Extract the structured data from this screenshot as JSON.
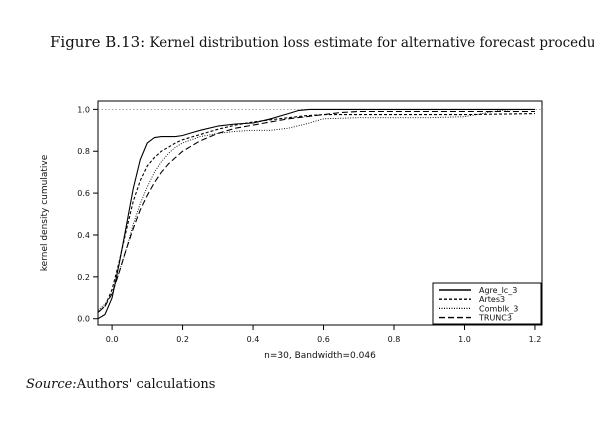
{
  "figure": {
    "number_label": "Figure B.13:",
    "title": "Kernel distribution loss estimate for alternative forecast procedures"
  },
  "source": {
    "label": "Source:",
    "text": "Authors' calculations"
  },
  "chart_data": {
    "type": "line",
    "title": "",
    "xlabel": "n=30, Bandwidth=0.046",
    "ylabel": "kernel density cumulative",
    "xlim": [
      -0.04,
      1.22
    ],
    "ylim": [
      -0.03,
      1.04
    ],
    "x_ticks": [
      0.0,
      0.2,
      0.4,
      0.6,
      0.8,
      1.0,
      1.2
    ],
    "x_tick_labels": [
      "0.0",
      "0.2",
      "0.4",
      "0.6",
      "0.8",
      "1.0",
      "1.2"
    ],
    "y_ticks": [
      0.0,
      0.2,
      0.4,
      0.6,
      0.8,
      1.0
    ],
    "y_tick_labels": [
      "0.0",
      "0.2",
      "0.4",
      "0.6",
      "0.8",
      "1.0"
    ],
    "reference_line": 1.0,
    "legend_position": "bottom-right",
    "series": [
      {
        "name": "Agre_lc_3",
        "style": "solid",
        "x": [
          -0.04,
          -0.02,
          0.0,
          0.02,
          0.04,
          0.06,
          0.08,
          0.1,
          0.12,
          0.14,
          0.16,
          0.18,
          0.2,
          0.22,
          0.25,
          0.3,
          0.35,
          0.4,
          0.45,
          0.5,
          0.53,
          0.56,
          0.6,
          0.8,
          1.0,
          1.2
        ],
        "y": [
          0.0,
          0.02,
          0.1,
          0.26,
          0.44,
          0.62,
          0.76,
          0.84,
          0.865,
          0.87,
          0.87,
          0.87,
          0.875,
          0.885,
          0.9,
          0.92,
          0.93,
          0.935,
          0.955,
          0.98,
          0.995,
          1.0,
          1.0,
          1.0,
          1.0,
          1.0
        ]
      },
      {
        "name": "Artes3",
        "style": "dashed-short",
        "x": [
          -0.04,
          -0.02,
          0.0,
          0.02,
          0.04,
          0.06,
          0.08,
          0.1,
          0.12,
          0.14,
          0.16,
          0.18,
          0.2,
          0.25,
          0.3,
          0.35,
          0.4,
          0.45,
          0.5,
          0.55,
          0.6,
          0.8,
          1.0,
          1.2
        ],
        "y": [
          0.03,
          0.06,
          0.14,
          0.27,
          0.42,
          0.56,
          0.66,
          0.73,
          0.77,
          0.8,
          0.82,
          0.84,
          0.855,
          0.88,
          0.905,
          0.925,
          0.94,
          0.95,
          0.96,
          0.97,
          0.975,
          0.975,
          0.975,
          0.98
        ]
      },
      {
        "name": "Comblk_3",
        "style": "dotted",
        "x": [
          -0.04,
          -0.02,
          0.0,
          0.02,
          0.04,
          0.06,
          0.08,
          0.1,
          0.12,
          0.14,
          0.16,
          0.18,
          0.2,
          0.25,
          0.3,
          0.35,
          0.4,
          0.45,
          0.5,
          0.55,
          0.6,
          0.7,
          0.8,
          0.9,
          1.0,
          1.05,
          1.1,
          1.15,
          1.2
        ],
        "y": [
          0.04,
          0.07,
          0.12,
          0.22,
          0.33,
          0.45,
          0.55,
          0.63,
          0.7,
          0.75,
          0.79,
          0.82,
          0.84,
          0.87,
          0.885,
          0.895,
          0.9,
          0.9,
          0.91,
          0.93,
          0.955,
          0.96,
          0.96,
          0.96,
          0.965,
          0.98,
          0.995,
          1.0,
          1.0
        ]
      },
      {
        "name": "TRUNC3",
        "style": "dashed-long",
        "x": [
          -0.04,
          -0.02,
          0.0,
          0.02,
          0.04,
          0.06,
          0.08,
          0.1,
          0.12,
          0.14,
          0.16,
          0.18,
          0.2,
          0.25,
          0.3,
          0.35,
          0.4,
          0.45,
          0.5,
          0.55,
          0.6,
          0.65,
          0.7,
          0.8,
          1.0,
          1.2
        ],
        "y": [
          0.03,
          0.06,
          0.12,
          0.22,
          0.33,
          0.43,
          0.52,
          0.59,
          0.65,
          0.7,
          0.74,
          0.77,
          0.8,
          0.85,
          0.885,
          0.91,
          0.925,
          0.94,
          0.955,
          0.965,
          0.975,
          0.985,
          0.99,
          0.99,
          0.99,
          0.99
        ]
      }
    ]
  }
}
